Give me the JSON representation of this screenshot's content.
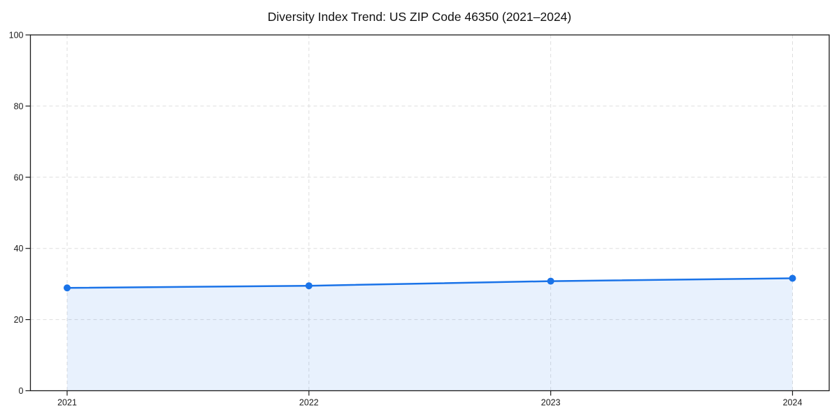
{
  "chart_data": {
    "type": "line",
    "title": "Diversity Index Trend: US ZIP Code 46350 (2021–2024)",
    "categories": [
      "2021",
      "2022",
      "2023",
      "2024"
    ],
    "series": [
      {
        "name": "Diversity Index",
        "values": [
          28.9,
          29.5,
          30.8,
          31.6
        ]
      }
    ],
    "xlabel": "",
    "ylabel": "",
    "ylim": [
      0,
      100
    ],
    "yticks": [
      0,
      20,
      40,
      60,
      80,
      100
    ],
    "grid": true,
    "grid_style": "dashed",
    "legend": "none",
    "area_fill": true,
    "marker": "circle",
    "colors": {
      "line": "#1a73e8",
      "marker": "#1a73e8",
      "area": "rgba(26,115,232,0.10)",
      "grid": "#dedede",
      "frame": "#1a1a1a",
      "tick_label": "#1b1b1b",
      "background": "#ffffff"
    }
  }
}
